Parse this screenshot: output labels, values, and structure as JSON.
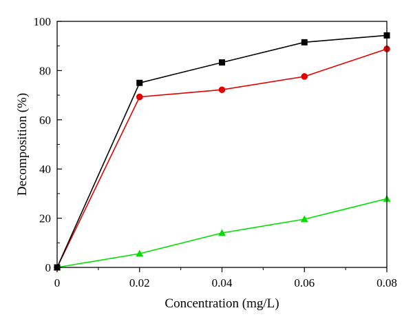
{
  "chart_data": {
    "type": "line",
    "title": "",
    "xlabel": "Concentration (mg/L)",
    "ylabel": "Decomposition (%)",
    "xlim": [
      0,
      0.08
    ],
    "ylim": [
      0,
      100
    ],
    "x_ticks": [
      0,
      0.02,
      0.04,
      0.06,
      0.08
    ],
    "x_tick_labels": [
      "0",
      "0.02",
      "0.04",
      "0.06",
      "0.08"
    ],
    "y_ticks": [
      0,
      20,
      40,
      60,
      80,
      100
    ],
    "y_tick_labels": [
      "0",
      "20",
      "40",
      "60",
      "80",
      "100"
    ],
    "grid": false,
    "legend": "none",
    "x": [
      0,
      0.02,
      0.04,
      0.06,
      0.08
    ],
    "series": [
      {
        "color": "#000000",
        "marker": "square",
        "values": [
          0,
          75,
          83.3,
          91.5,
          94.3
        ]
      },
      {
        "color": "#e00000",
        "marker": "circle",
        "values": [
          0,
          69.3,
          72.2,
          77.6,
          88.8
        ]
      },
      {
        "color": "#00e000",
        "marker": "triangle",
        "values": [
          0,
          5.6,
          14,
          19.6,
          27.9
        ]
      }
    ]
  }
}
